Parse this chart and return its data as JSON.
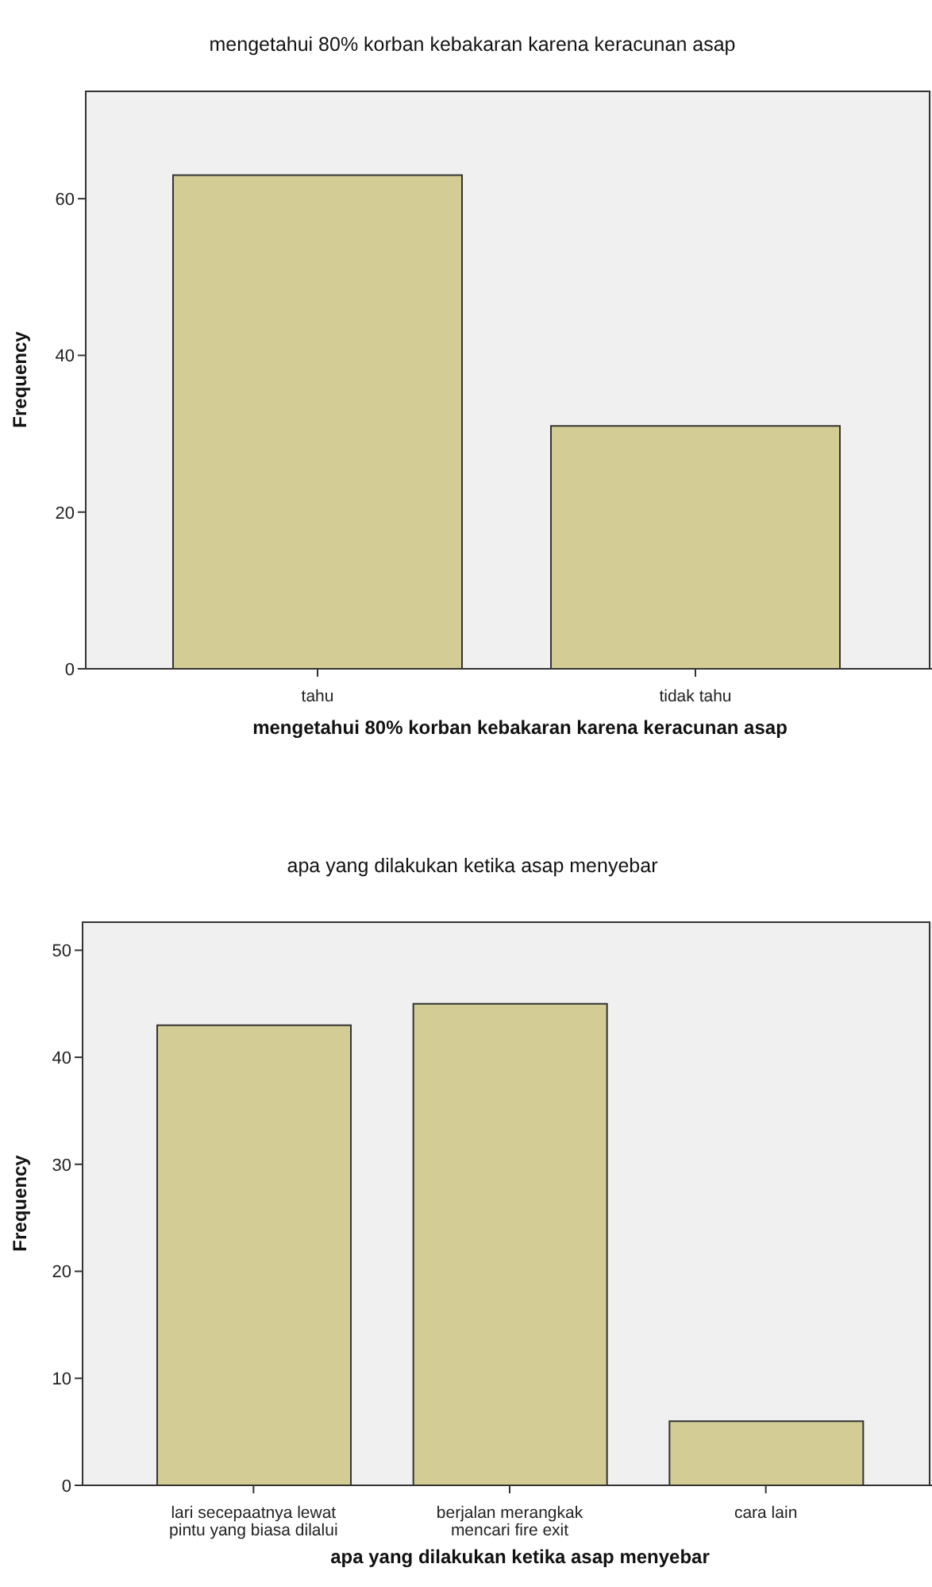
{
  "chart_data": [
    {
      "type": "bar",
      "title": "mengetahui 80% korban kebakaran karena keracunan asap",
      "xlabel": "mengetahui 80% korban kebakaran karena keracunan asap",
      "ylabel": "Frequency",
      "categories": [
        "tahu",
        "tidak tahu"
      ],
      "values": [
        63,
        31
      ],
      "color": "#d3cd95",
      "ylim": [
        0,
        73.8
      ],
      "yticks": [
        0,
        20,
        40,
        60
      ]
    },
    {
      "type": "bar",
      "title": "apa yang dilakukan ketika asap menyebar",
      "xlabel": "apa yang dilakukan ketika asap menyebar",
      "ylabel": "Frequency",
      "categories": [
        "lari secepaatnya lewat pintu yang biasa dilalui",
        "berjalan merangkak mencari fire exit",
        "cara lain"
      ],
      "values": [
        43,
        45,
        6
      ],
      "color": "#d3cd95",
      "ylim": [
        0,
        52.7
      ],
      "yticks": [
        0,
        10,
        20,
        30,
        40,
        50
      ]
    }
  ]
}
